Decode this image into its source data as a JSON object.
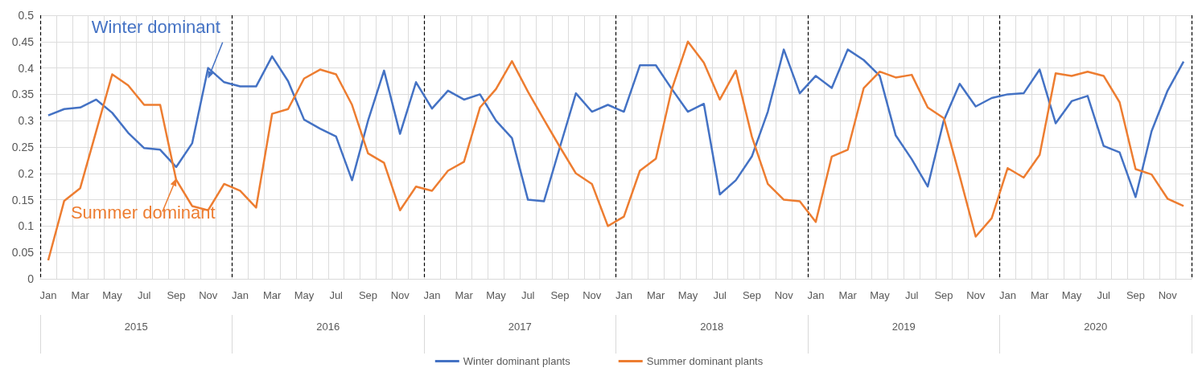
{
  "chart_data": {
    "type": "line",
    "categories": [
      "Jan",
      null,
      "Mar",
      null,
      "May",
      null,
      "Jul",
      null,
      "Sep",
      null,
      "Nov",
      null,
      "Jan",
      null,
      "Mar",
      null,
      "May",
      null,
      "Jul",
      null,
      "Sep",
      null,
      "Nov",
      null,
      "Jan",
      null,
      "Mar",
      null,
      "May",
      null,
      "Jul",
      null,
      "Sep",
      null,
      "Nov",
      null,
      "Jan",
      null,
      "Mar",
      null,
      "May",
      null,
      "Jul",
      null,
      "Sep",
      null,
      "Nov",
      null,
      "Jan",
      null,
      "Mar",
      null,
      "May",
      null,
      "Jul",
      null,
      "Sep",
      null,
      "Nov",
      null,
      "Jan",
      null,
      "Mar",
      null,
      "May",
      null,
      "Jul",
      null,
      "Sep",
      null,
      "Nov",
      null
    ],
    "series": [
      {
        "name": "Winter dominant plants",
        "color": "#4472c4",
        "values": [
          0.31,
          0.322,
          0.325,
          0.34,
          0.315,
          0.277,
          0.248,
          0.245,
          0.212,
          0.257,
          0.4,
          0.373,
          0.365,
          0.365,
          0.422,
          0.375,
          0.302,
          0.285,
          0.27,
          0.187,
          0.3,
          0.395,
          0.275,
          0.373,
          0.323,
          0.357,
          0.34,
          0.35,
          0.3,
          0.267,
          0.15,
          0.147,
          0.25,
          0.352,
          0.317,
          0.33,
          0.317,
          0.405,
          0.405,
          0.36,
          0.317,
          0.332,
          0.16,
          0.187,
          0.232,
          0.317,
          0.435,
          0.352,
          0.385,
          0.362,
          0.435,
          0.415,
          0.385,
          0.272,
          0.227,
          0.175,
          0.3,
          0.37,
          0.327,
          0.343,
          0.35,
          0.352,
          0.397,
          0.295,
          0.337,
          0.347,
          0.252,
          0.24,
          0.155,
          0.28,
          0.357,
          0.412
        ]
      },
      {
        "name": "Summer dominant plants",
        "color": "#ed7d31",
        "values": [
          0.035,
          0.148,
          0.172,
          0.28,
          0.388,
          0.367,
          0.33,
          0.33,
          0.188,
          0.138,
          0.13,
          0.18,
          0.167,
          0.135,
          0.313,
          0.322,
          0.38,
          0.397,
          0.388,
          0.33,
          0.238,
          0.22,
          0.13,
          0.175,
          0.167,
          0.205,
          0.222,
          0.325,
          0.36,
          0.413,
          0.355,
          0.302,
          0.25,
          0.2,
          0.18,
          0.1,
          0.118,
          0.205,
          0.228,
          0.36,
          0.45,
          0.41,
          0.34,
          0.395,
          0.27,
          0.18,
          0.15,
          0.147,
          0.108,
          0.232,
          0.245,
          0.362,
          0.393,
          0.382,
          0.387,
          0.325,
          0.305,
          0.195,
          0.08,
          0.115,
          0.21,
          0.192,
          0.235,
          0.39,
          0.385,
          0.393,
          0.385,
          0.335,
          0.208,
          0.198,
          0.152,
          0.138
        ]
      }
    ],
    "annotations": [
      {
        "text": "Winter dominant",
        "x": "Nov",
        "y": 0.38
      },
      {
        "text": "Summer dominant",
        "x": "Sep",
        "y": 0.19
      },
      "2015",
      "2016",
      "2017",
      "2018",
      "2019",
      "2020"
    ],
    "ylim": [
      0,
      0.5
    ],
    "yticks": [
      0,
      0.05,
      0.1,
      0.15,
      0.2,
      0.25,
      0.3,
      0.35,
      0.4,
      0.45,
      0.5
    ],
    "grid": true,
    "legend": "bottom",
    "marker": "none",
    "line_style": "solid"
  }
}
